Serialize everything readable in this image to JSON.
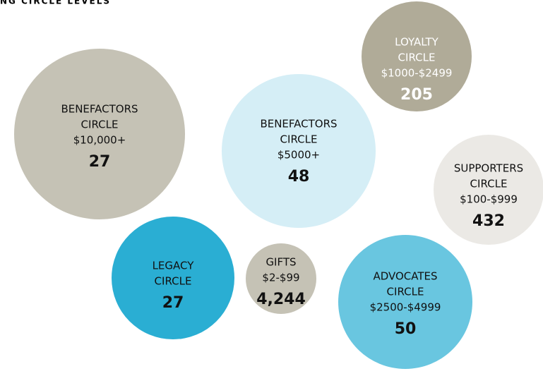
{
  "header": {
    "title": "NG CIRCLE LEVELS"
  },
  "nodes": [
    {
      "lines": [
        "BENEFACTORS",
        "CIRCLE",
        "$10,000+"
      ],
      "count": "27"
    },
    {
      "lines": [
        "BENEFACTORS",
        "CIRCLE",
        "$5000+"
      ],
      "count": "48"
    },
    {
      "lines": [
        "LOYALTY",
        "CIRCLE",
        "$1000-$2499"
      ],
      "count": "205"
    },
    {
      "lines": [
        "SUPPORTERS",
        "CIRCLE",
        "$100-$999"
      ],
      "count": "432"
    },
    {
      "lines": [
        "LEGACY",
        "CIRCLE"
      ],
      "count": "27"
    },
    {
      "lines": [
        "GIFTS",
        "$2-$99"
      ],
      "count": "4,244"
    },
    {
      "lines": [
        "ADVOCATES",
        "CIRCLE",
        "$2500-$4999"
      ],
      "count": "50"
    }
  ]
}
